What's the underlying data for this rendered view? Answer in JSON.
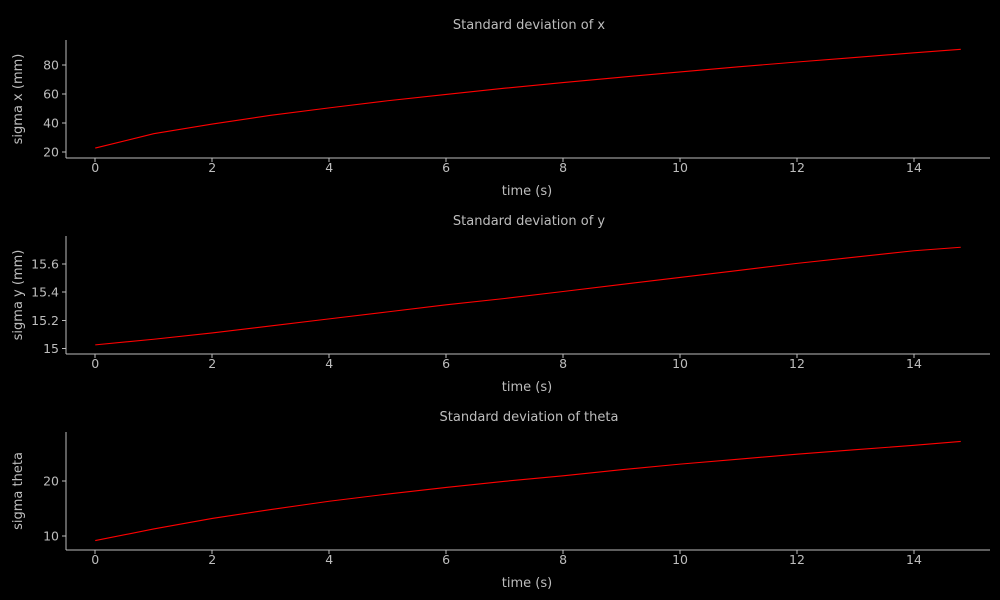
{
  "figure": {
    "background": "#000000",
    "foreground": "#bdbdbd"
  },
  "chart_data": [
    {
      "type": "line",
      "title": "Standard deviation of x",
      "xlabel": "time (s)",
      "ylabel": "sigma x (mm)",
      "xlim": [
        -0.5,
        15.3
      ],
      "ylim": [
        16,
        97
      ],
      "xticks": [
        0,
        2,
        4,
        6,
        8,
        10,
        12,
        14
      ],
      "yticks": [
        20,
        40,
        60,
        80
      ],
      "grid": false,
      "series": [
        {
          "color": "#ff0000",
          "x": [
            0,
            1,
            2,
            3,
            4,
            5,
            6,
            7,
            8,
            9,
            10,
            11,
            12,
            13,
            14,
            14.8
          ],
          "y": [
            22.8,
            32.7,
            39.3,
            45.3,
            50.4,
            55.3,
            59.6,
            63.9,
            67.8,
            71.5,
            75.1,
            78.6,
            81.9,
            85.0,
            88.2,
            90.6
          ]
        }
      ]
    },
    {
      "type": "line",
      "title": "Standard deviation of y",
      "xlabel": "time (s)",
      "ylabel": "sigma y (mm)",
      "xlim": [
        -0.5,
        15.3
      ],
      "ylim": [
        14.96,
        15.8
      ],
      "xticks": [
        0,
        2,
        4,
        6,
        8,
        10,
        12,
        14
      ],
      "yticks": [
        15,
        15.2,
        15.4,
        15.6
      ],
      "yticklabels": [
        "15",
        "15.2",
        "15.4",
        "15.6"
      ],
      "grid": false,
      "series": [
        {
          "color": "#ff0000",
          "x": [
            0,
            1,
            2,
            3,
            4,
            5,
            6,
            7,
            8,
            9,
            10,
            11,
            12,
            13,
            14,
            14.8
          ],
          "y": [
            15.025,
            15.065,
            15.11,
            15.16,
            15.21,
            15.26,
            15.31,
            15.355,
            15.405,
            15.455,
            15.505,
            15.555,
            15.605,
            15.65,
            15.695,
            15.72
          ]
        }
      ]
    },
    {
      "type": "line",
      "title": "Standard deviation of theta",
      "xlabel": "time (s)",
      "ylabel": "sigma theta",
      "xlim": [
        -0.5,
        15.3
      ],
      "ylim": [
        7.5,
        28.8
      ],
      "xticks": [
        0,
        2,
        4,
        6,
        8,
        10,
        12,
        14
      ],
      "yticks": [
        10,
        20
      ],
      "grid": false,
      "series": [
        {
          "color": "#ff0000",
          "x": [
            0,
            1,
            2,
            3,
            4,
            5,
            6,
            7,
            8,
            9,
            10,
            11,
            12,
            13,
            14,
            14.8
          ],
          "y": [
            9.2,
            11.3,
            13.2,
            14.8,
            16.3,
            17.6,
            18.8,
            19.9,
            20.9,
            22.0,
            23.0,
            23.9,
            24.8,
            25.6,
            26.4,
            27.1
          ]
        }
      ]
    }
  ]
}
